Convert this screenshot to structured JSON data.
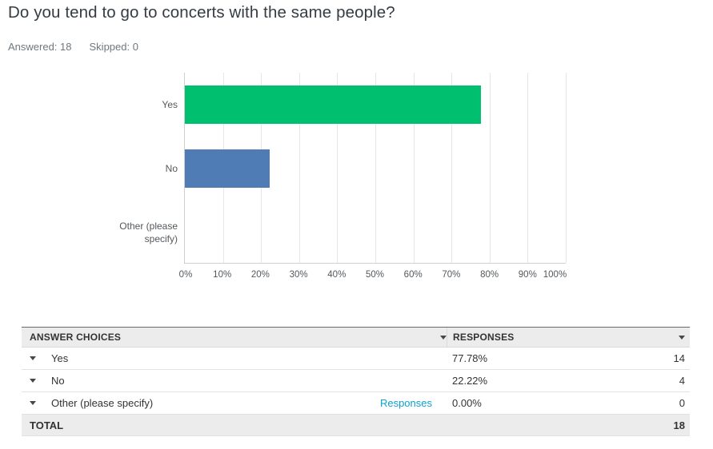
{
  "header": {
    "title": "Do you tend to go to concerts with the same people?",
    "answered_label": "Answered:",
    "answered_value": "18",
    "skipped_label": "Skipped:",
    "skipped_value": "0"
  },
  "chart_data": {
    "type": "bar",
    "orientation": "horizontal",
    "title": "Do you tend to go to concerts with the same people?",
    "categories": [
      "Yes",
      "No",
      "Other (please specify)"
    ],
    "values": [
      77.78,
      22.22,
      0
    ],
    "colors": [
      "#00BF6F",
      "#4F7CB5",
      "#4F7CB5"
    ],
    "xticks": [
      "0%",
      "10%",
      "20%",
      "30%",
      "40%",
      "50%",
      "60%",
      "70%",
      "80%",
      "90%",
      "100%"
    ],
    "xlim": [
      0,
      100
    ],
    "xlabel": "",
    "ylabel": "",
    "grid": "vertical-gridlines-on"
  },
  "table": {
    "header": {
      "answer_choices": "ANSWER CHOICES",
      "responses": "RESPONSES"
    },
    "rows": [
      {
        "label": "Yes",
        "percent": "77.78%",
        "count": "14"
      },
      {
        "label": "No",
        "percent": "22.22%",
        "count": "4"
      },
      {
        "label": "Other (please specify)",
        "link_label": "Responses",
        "percent": "0.00%",
        "count": "0"
      }
    ],
    "total_label": "TOTAL",
    "total_value": "18"
  },
  "colors": {
    "bar_yes": "#00BF6F",
    "bar_no": "#4F7CB5",
    "link": "#0DA2CE",
    "table_header_bg": "#ECECEC"
  }
}
